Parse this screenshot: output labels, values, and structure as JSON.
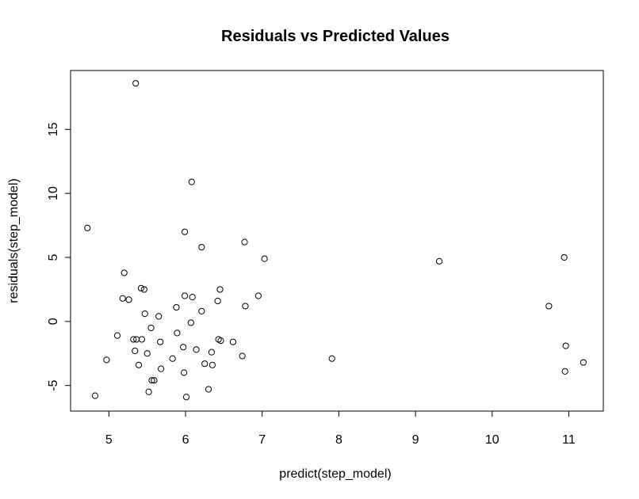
{
  "chart_data": {
    "type": "scatter",
    "title": "Residuals vs Predicted Values",
    "xlabel": "predict(step_model)",
    "ylabel": "residuals(step_model)",
    "xlim": [
      4.5,
      11.45
    ],
    "ylim": [
      -7.0,
      19.6
    ],
    "xticks": [
      5,
      6,
      7,
      8,
      9,
      10,
      11
    ],
    "yticks": [
      -5,
      0,
      5,
      10,
      15
    ],
    "xtick_labels": [
      "5",
      "6",
      "7",
      "8",
      "9",
      "10",
      "11"
    ],
    "ytick_labels": [
      "-5",
      "0",
      "5",
      "10",
      "15"
    ],
    "grid": false,
    "points": [
      {
        "x": 5.35,
        "y": 18.6
      },
      {
        "x": 6.08,
        "y": 10.9
      },
      {
        "x": 4.72,
        "y": 7.3
      },
      {
        "x": 5.99,
        "y": 7.0
      },
      {
        "x": 6.77,
        "y": 6.2
      },
      {
        "x": 6.21,
        "y": 5.8
      },
      {
        "x": 7.03,
        "y": 4.9
      },
      {
        "x": 9.31,
        "y": 4.7
      },
      {
        "x": 10.94,
        "y": 5.0
      },
      {
        "x": 5.2,
        "y": 3.8
      },
      {
        "x": 5.42,
        "y": 2.6
      },
      {
        "x": 5.46,
        "y": 2.5
      },
      {
        "x": 6.45,
        "y": 2.5
      },
      {
        "x": 5.18,
        "y": 1.8
      },
      {
        "x": 5.26,
        "y": 1.7
      },
      {
        "x": 5.99,
        "y": 2.0
      },
      {
        "x": 6.09,
        "y": 1.9
      },
      {
        "x": 6.95,
        "y": 2.0
      },
      {
        "x": 6.42,
        "y": 1.6
      },
      {
        "x": 6.78,
        "y": 1.2
      },
      {
        "x": 5.88,
        "y": 1.1
      },
      {
        "x": 10.74,
        "y": 1.2
      },
      {
        "x": 6.21,
        "y": 0.8
      },
      {
        "x": 5.47,
        "y": 0.6
      },
      {
        "x": 5.65,
        "y": 0.4
      },
      {
        "x": 6.07,
        "y": -0.1
      },
      {
        "x": 5.55,
        "y": -0.5
      },
      {
        "x": 5.11,
        "y": -1.1
      },
      {
        "x": 5.89,
        "y": -0.9
      },
      {
        "x": 5.32,
        "y": -1.4
      },
      {
        "x": 5.36,
        "y": -1.4
      },
      {
        "x": 5.43,
        "y": -1.4
      },
      {
        "x": 5.67,
        "y": -1.6
      },
      {
        "x": 6.43,
        "y": -1.4
      },
      {
        "x": 6.46,
        "y": -1.5
      },
      {
        "x": 6.62,
        "y": -1.6
      },
      {
        "x": 5.97,
        "y": -2.0
      },
      {
        "x": 6.14,
        "y": -2.2
      },
      {
        "x": 10.96,
        "y": -1.9
      },
      {
        "x": 5.34,
        "y": -2.3
      },
      {
        "x": 5.5,
        "y": -2.5
      },
      {
        "x": 6.34,
        "y": -2.4
      },
      {
        "x": 4.97,
        "y": -3.0
      },
      {
        "x": 5.83,
        "y": -2.9
      },
      {
        "x": 6.74,
        "y": -2.7
      },
      {
        "x": 7.91,
        "y": -2.9
      },
      {
        "x": 5.39,
        "y": -3.4
      },
      {
        "x": 6.25,
        "y": -3.3
      },
      {
        "x": 6.35,
        "y": -3.4
      },
      {
        "x": 5.68,
        "y": -3.7
      },
      {
        "x": 5.98,
        "y": -4.0
      },
      {
        "x": 10.95,
        "y": -3.9
      },
      {
        "x": 11.19,
        "y": -3.2
      },
      {
        "x": 5.56,
        "y": -4.6
      },
      {
        "x": 5.59,
        "y": -4.6
      },
      {
        "x": 5.52,
        "y": -5.5
      },
      {
        "x": 6.3,
        "y": -5.3
      },
      {
        "x": 4.82,
        "y": -5.8
      },
      {
        "x": 6.01,
        "y": -5.9
      }
    ]
  }
}
